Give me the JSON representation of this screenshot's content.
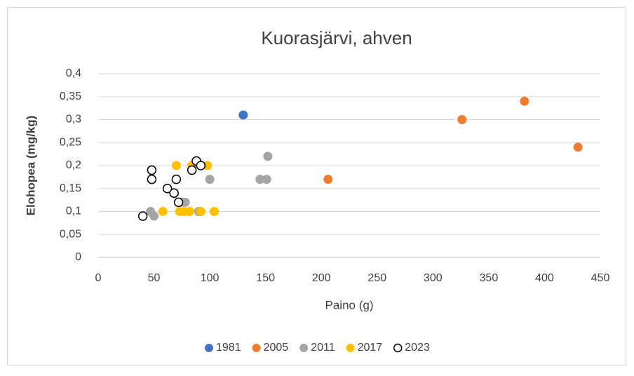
{
  "chart_data": {
    "type": "scatter",
    "title": "Kuorasjärvi, ahven",
    "x_label": "Paino (g)",
    "y_label": "Elohopea (mg/kg)",
    "xlim": [
      0,
      450
    ],
    "xticks": [
      0,
      50,
      100,
      150,
      200,
      250,
      300,
      350,
      400,
      450
    ],
    "ylim": [
      0,
      0.4
    ],
    "yticks": [
      {
        "value": 0,
        "label": "0"
      },
      {
        "value": 0.05,
        "label": "0,05"
      },
      {
        "value": 0.1,
        "label": "0,1"
      },
      {
        "value": 0.15,
        "label": "0,15"
      },
      {
        "value": 0.2,
        "label": "0,2"
      },
      {
        "value": 0.25,
        "label": "0,25"
      },
      {
        "value": 0.3,
        "label": "0,3"
      },
      {
        "value": 0.35,
        "label": "0,35"
      },
      {
        "value": 0.4,
        "label": "0,4"
      }
    ],
    "grid": true,
    "legend": "bottom",
    "series": [
      {
        "name": "1981",
        "color": "#4472c4",
        "filled": true,
        "x": [
          130
        ],
        "values": [
          0.31
        ]
      },
      {
        "name": "2005",
        "color": "#ed7d31",
        "filled": true,
        "x": [
          206,
          326,
          382,
          430
        ],
        "values": [
          0.17,
          0.3,
          0.34,
          0.24
        ]
      },
      {
        "name": "2011",
        "color": "#a5a5a5",
        "filled": true,
        "x": [
          47,
          50,
          75,
          78,
          90,
          100,
          145,
          151,
          152
        ],
        "values": [
          0.1,
          0.09,
          0.12,
          0.12,
          0.1,
          0.17,
          0.17,
          0.17,
          0.22
        ]
      },
      {
        "name": "2017",
        "color": "#ffc000",
        "filled": true,
        "x": [
          58,
          70,
          73,
          77,
          82,
          84,
          92,
          98,
          104
        ],
        "values": [
          0.1,
          0.2,
          0.1,
          0.1,
          0.1,
          0.2,
          0.1,
          0.2,
          0.1
        ]
      },
      {
        "name": "2023",
        "color": "#000000",
        "filled": false,
        "x": [
          40,
          48,
          48,
          62,
          68,
          70,
          72,
          84,
          88,
          92
        ],
        "values": [
          0.09,
          0.19,
          0.17,
          0.15,
          0.14,
          0.17,
          0.12,
          0.19,
          0.21,
          0.2
        ]
      }
    ]
  }
}
